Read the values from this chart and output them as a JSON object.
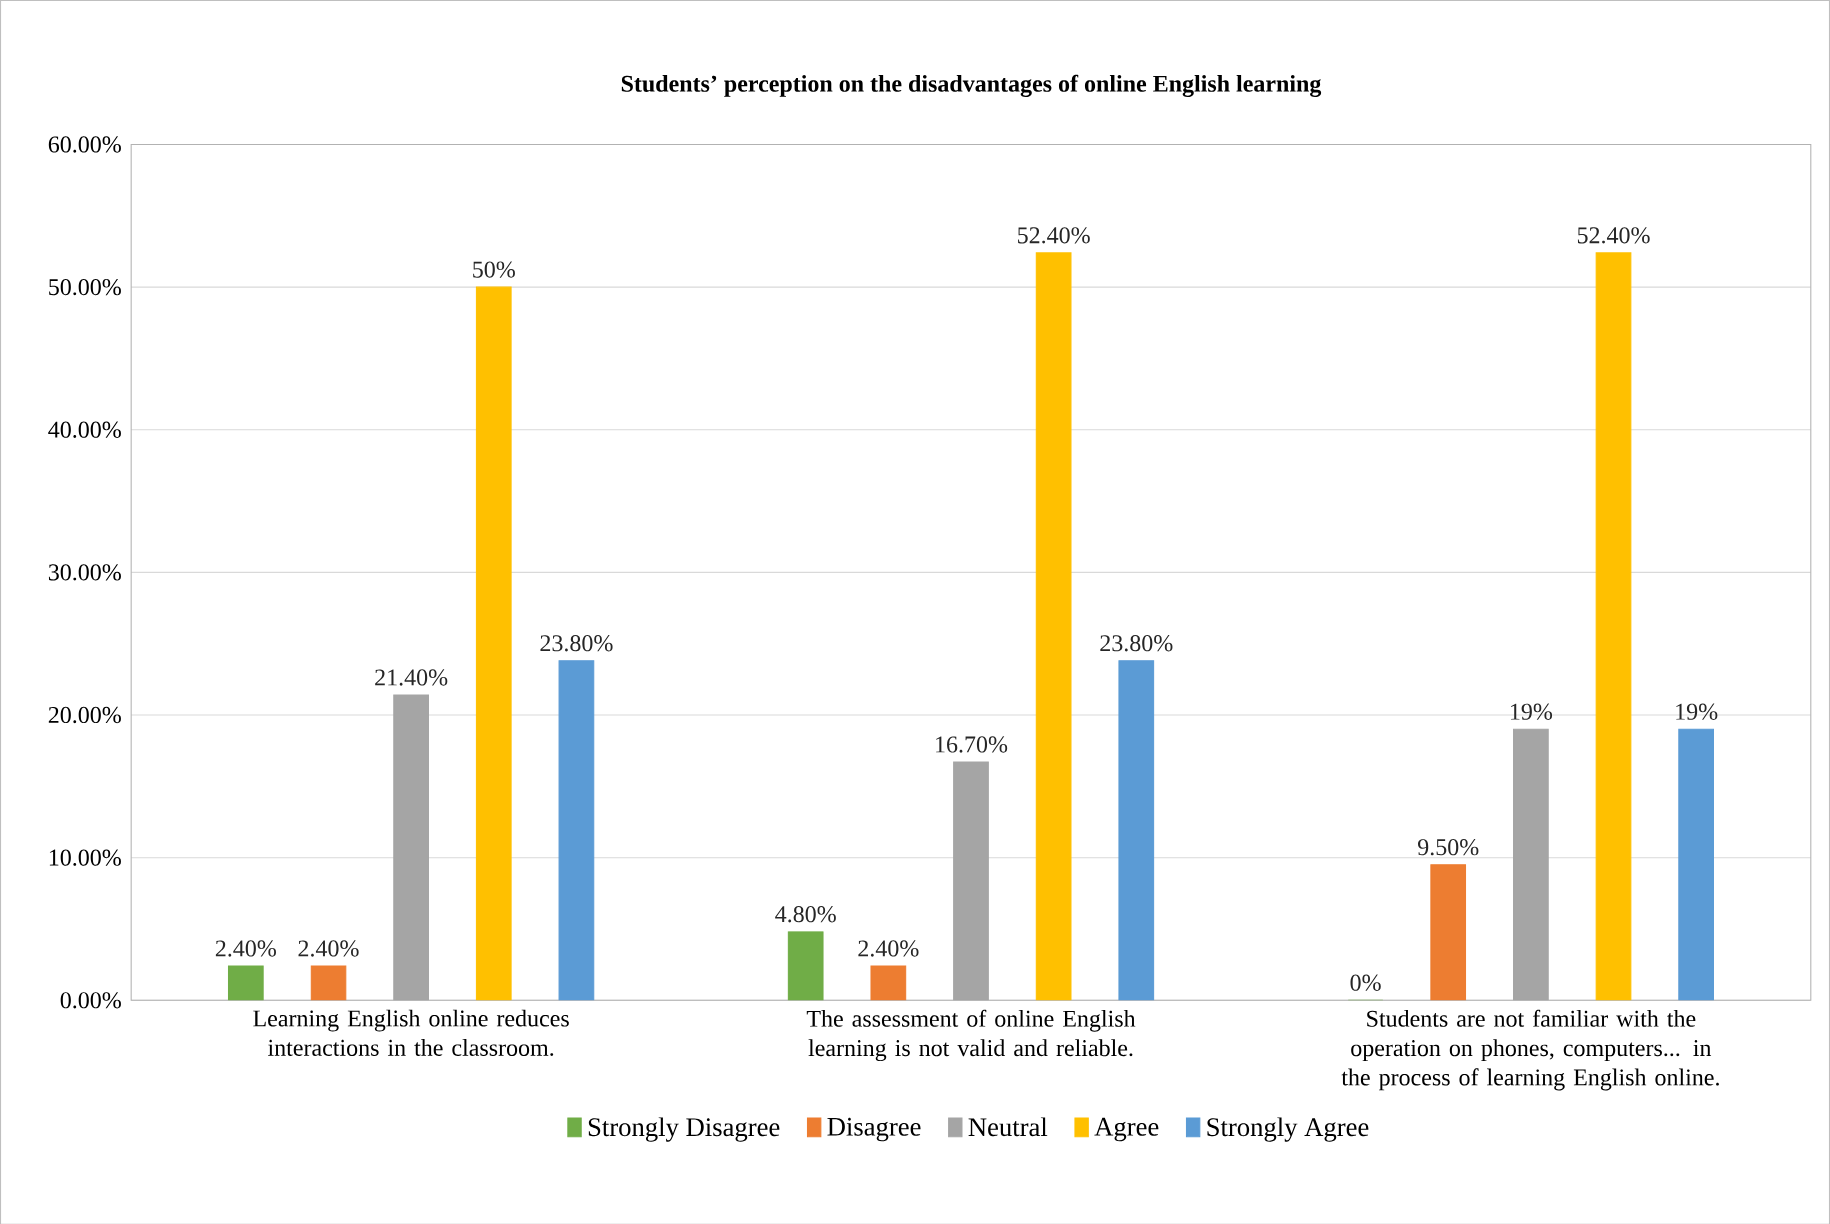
{
  "chart_data": {
    "type": "bar",
    "title": "Students’ perception on the disadvantages of online English learning",
    "categories": [
      "Learning English online reduces interactions in the classroom.",
      "The assessment of online English learning is not valid and reliable.",
      "Students are not familiar with the operation on phones, computers... in the process of learning English online."
    ],
    "series": [
      {
        "name": "Strongly Disagree",
        "color": "#70ad47",
        "values": [
          2.4,
          4.8,
          0
        ],
        "value_labels": [
          "2.40%",
          "4.80%",
          "0%"
        ]
      },
      {
        "name": "Disagree",
        "color": "#ed7d31",
        "values": [
          2.4,
          2.4,
          9.5
        ],
        "value_labels": [
          "2.40%",
          "2.40%",
          "9.50%"
        ]
      },
      {
        "name": "Neutral",
        "color": "#a5a5a5",
        "values": [
          21.4,
          16.7,
          19
        ],
        "value_labels": [
          "21.40%",
          "16.70%",
          "19%"
        ]
      },
      {
        "name": "Agree",
        "color": "#ffc000",
        "values": [
          50,
          52.4,
          52.4
        ],
        "value_labels": [
          "50%",
          "52.40%",
          "52.40%"
        ]
      },
      {
        "name": "Strongly Agree",
        "color": "#5b9bd5",
        "values": [
          23.8,
          23.8,
          19
        ],
        "value_labels": [
          "23.80%",
          "23.80%",
          "19%"
        ]
      }
    ],
    "ylim": [
      0,
      60
    ],
    "yticks": [
      {
        "value": 0,
        "label": "0.00%"
      },
      {
        "value": 10,
        "label": "10.00%"
      },
      {
        "value": 20,
        "label": "20.00%"
      },
      {
        "value": 30,
        "label": "30.00%"
      },
      {
        "value": 40,
        "label": "40.00%"
      },
      {
        "value": 50,
        "label": "50.00%"
      },
      {
        "value": 60,
        "label": "60.00%"
      }
    ],
    "grid": "y",
    "legend": "bottom"
  }
}
